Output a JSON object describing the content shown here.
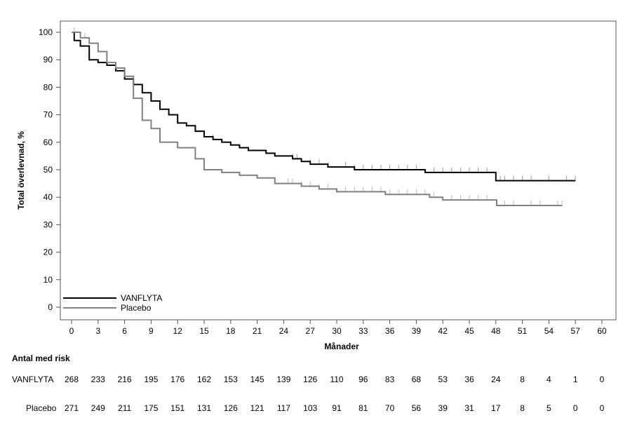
{
  "chart_data": {
    "type": "line",
    "subtype": "kaplan-meier",
    "xlabel": "Månader",
    "ylabel": "Total överlevnad, %",
    "xlim": [
      0,
      60
    ],
    "ylim": [
      0,
      100
    ],
    "xticks": [
      0,
      3,
      6,
      9,
      12,
      15,
      18,
      21,
      24,
      27,
      30,
      33,
      36,
      39,
      42,
      45,
      48,
      51,
      54,
      57,
      60
    ],
    "yticks": [
      0,
      10,
      20,
      30,
      40,
      50,
      60,
      70,
      80,
      90,
      100
    ],
    "legend_position": "bottom-left",
    "series": [
      {
        "name": "VANFLYTA",
        "color": "#000000",
        "x": [
          0,
          0.3,
          1,
          2,
          3,
          4,
          5,
          6,
          7,
          8,
          9,
          10,
          11,
          12,
          13,
          14,
          15,
          16,
          17,
          18,
          19,
          20,
          22,
          23,
          25,
          26,
          27,
          29,
          32,
          40,
          48,
          57
        ],
        "y": [
          100,
          97,
          95,
          90,
          89,
          88,
          86,
          83,
          81,
          78,
          75,
          72,
          70,
          67,
          66,
          64,
          62,
          61,
          60,
          59,
          58,
          57,
          56,
          55,
          54,
          53,
          52,
          51,
          50,
          49,
          46,
          46
        ],
        "censored": [
          4,
          16,
          25,
          25.5,
          27,
          28,
          29,
          31,
          32,
          33,
          34,
          35,
          36,
          37,
          38,
          39,
          41,
          42,
          43,
          44,
          45,
          46,
          47,
          48.5,
          49,
          50,
          51,
          52,
          54,
          56,
          57
        ]
      },
      {
        "name": "Placebo",
        "color": "#808080",
        "x": [
          0,
          1,
          2,
          3,
          4,
          5,
          6,
          7,
          8,
          9,
          10,
          12,
          14,
          15,
          17,
          19,
          21,
          23,
          26,
          28,
          30,
          35.5,
          40.5,
          42,
          48.1,
          55.5
        ],
        "y": [
          100,
          98,
          96,
          93,
          89,
          87,
          84,
          76,
          68,
          65,
          60,
          58,
          54,
          50,
          49,
          48,
          47,
          45,
          44,
          43,
          42,
          41,
          40,
          39,
          37,
          37
        ],
        "censored": [
          0.3,
          1.5,
          24.5,
          25,
          26,
          27,
          28,
          29,
          31,
          32,
          33,
          34,
          35,
          36,
          37,
          38,
          39,
          40,
          41,
          43,
          44,
          45,
          46,
          47,
          49,
          50,
          52,
          53,
          55,
          55.5
        ]
      }
    ],
    "risk_table": {
      "title": "Antal med risk",
      "rows": [
        {
          "label": "VANFLYTA",
          "values": [
            268,
            233,
            216,
            195,
            176,
            162,
            153,
            145,
            139,
            126,
            110,
            96,
            83,
            68,
            53,
            36,
            24,
            8,
            4,
            1,
            0
          ]
        },
        {
          "label": "Placebo",
          "values": [
            271,
            249,
            211,
            175,
            151,
            131,
            126,
            121,
            117,
            103,
            91,
            81,
            70,
            56,
            39,
            31,
            17,
            8,
            5,
            0,
            0
          ]
        }
      ]
    }
  }
}
